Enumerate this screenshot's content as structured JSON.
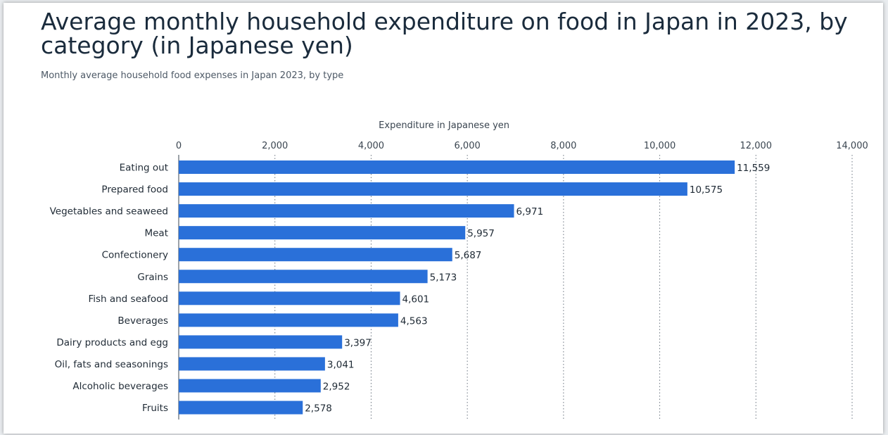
{
  "title": "Average monthly household expenditure on food in Japan in 2023, by category (in Japanese yen)",
  "subtitle": "Monthly average household food expenses in Japan 2023, by type",
  "chart_data": {
    "type": "bar",
    "orientation": "horizontal",
    "xlabel": "Expenditure in Japanese yen",
    "ylabel": "",
    "xlim": [
      0,
      14000
    ],
    "ticks": [
      0,
      2000,
      4000,
      6000,
      8000,
      10000,
      12000,
      14000
    ],
    "tick_labels": [
      "0",
      "2,000",
      "4,000",
      "6,000",
      "8,000",
      "10,000",
      "12,000",
      "14,000"
    ],
    "categories": [
      "Eating out",
      "Prepared food",
      "Vegetables and seaweed",
      "Meat",
      "Confectionery",
      "Grains",
      "Fish and seafood",
      "Beverages",
      "Dairy products and egg",
      "Oil, fats and seasonings",
      "Alcoholic beverages",
      "Fruits"
    ],
    "values": [
      11559,
      10575,
      6971,
      5957,
      5687,
      5173,
      4601,
      4563,
      3397,
      3041,
      2952,
      2578
    ],
    "value_labels": [
      "11,559",
      "10,575",
      "6,971",
      "5,957",
      "5,687",
      "5,173",
      "4,601",
      "4,563",
      "3,397",
      "3,041",
      "2,952",
      "2,578"
    ],
    "grid": "vertical dotted",
    "axis_position": "top",
    "bar_color": "#2a70d9"
  }
}
